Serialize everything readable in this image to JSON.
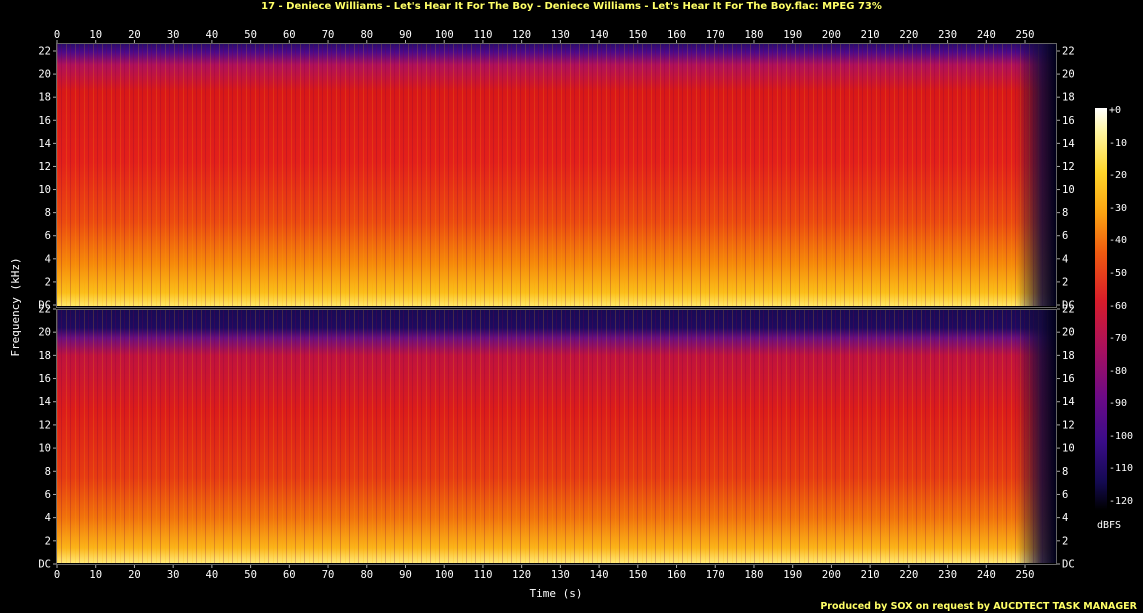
{
  "title": "17 - Deniece Williams - Let's Hear It For The Boy - Deniece Williams - Let's Hear It For The Boy.flac: MPEG 73%",
  "footer": "Produced by SOX on request by AUCDTECT TASK MANAGER",
  "chart_data": {
    "type": "heatmap",
    "title": "17 - Deniece Williams - Let's Hear It For The Boy - Deniece Williams - Let's Hear It For The Boy.flac: MPEG 73%",
    "xlabel": "Time (s)",
    "ylabel": "Frequency (kHz)",
    "xlim": [
      0,
      258
    ],
    "ylim": [
      0,
      22
    ],
    "x_ticks": [
      0,
      10,
      20,
      30,
      40,
      50,
      60,
      70,
      80,
      90,
      100,
      110,
      120,
      130,
      140,
      150,
      160,
      170,
      180,
      190,
      200,
      210,
      220,
      230,
      240,
      250
    ],
    "y_ticks": [
      "DC",
      "2",
      "4",
      "6",
      "8",
      "10",
      "12",
      "14",
      "16",
      "18",
      "20",
      "22"
    ],
    "y_tick_values": [
      0,
      2,
      4,
      6,
      8,
      10,
      12,
      14,
      16,
      18,
      20,
      22
    ],
    "channels": [
      {
        "name": "channel-1",
        "cutoff_khz": 20.5
      },
      {
        "name": "channel-2",
        "cutoff_khz": 20.5
      }
    ],
    "colorbar": {
      "unit": "dBFS",
      "ticks": [
        "+0",
        "-10",
        "-20",
        "-30",
        "-40",
        "-50",
        "-60",
        "-70",
        "-80",
        "-90",
        "-100",
        "-110",
        "-120"
      ],
      "tick_values": [
        0,
        -10,
        -20,
        -30,
        -40,
        -50,
        -60,
        -70,
        -80,
        -90,
        -100,
        -110,
        -120
      ],
      "range": [
        -120,
        0
      ]
    },
    "colors": {
      "high": "#ffffff",
      "mid_high": "#ffd52a",
      "mid": "#d81c2a",
      "low": "#3a0c88",
      "floor": "#000000",
      "title_text": "#ffff66"
    }
  }
}
